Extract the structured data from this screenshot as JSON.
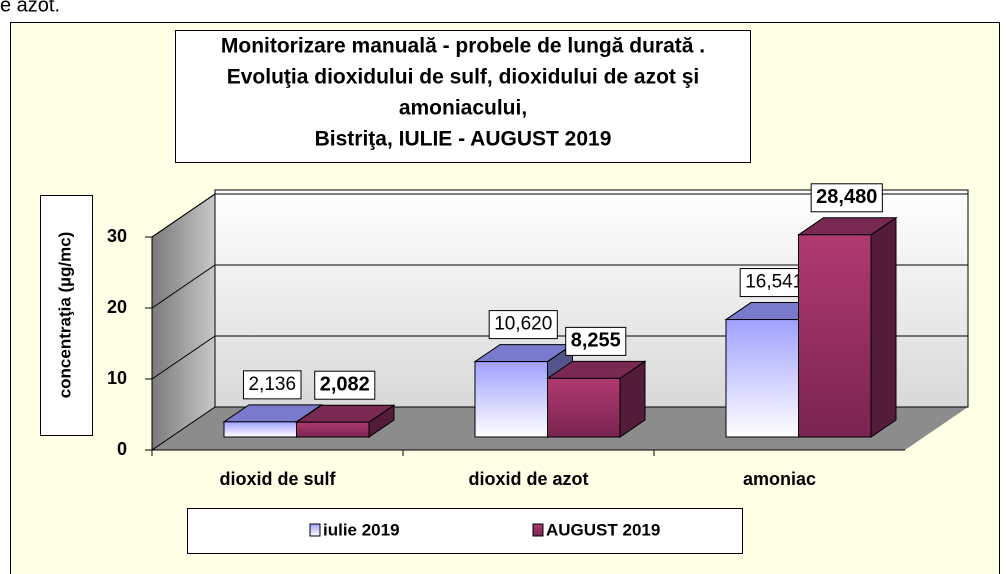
{
  "fragment": "e azot.",
  "chart_data": {
    "type": "bar3d",
    "title_lines": [
      "Monitorizare manuală - probele de lungă durată .",
      "Evoluţia dioxidului de sulf, dioxidului de azot şi",
      "amoniacului,",
      "Bistriţa,  IULIE - AUGUST  2019"
    ],
    "y_label": "concentraţia (µg/mc)",
    "categories": [
      "dioxid de sulf",
      "dioxid de azot",
      "amoniac"
    ],
    "series": [
      {
        "name": "iulie 2019",
        "color": "#9999ff",
        "values": [
          2.136,
          10.62,
          16.541
        ],
        "value_labels": [
          "2,136",
          "10,620",
          "16,541"
        ]
      },
      {
        "name": "AUGUST 2019",
        "color": "#993366",
        "values": [
          2.082,
          8.255,
          28.48
        ],
        "value_labels": [
          "2,082",
          "8,255",
          "28,480"
        ]
      }
    ],
    "ylim": [
      0,
      30
    ],
    "yticks": [
      0,
      10,
      20,
      30
    ],
    "grid": true,
    "legend": "bottom"
  }
}
